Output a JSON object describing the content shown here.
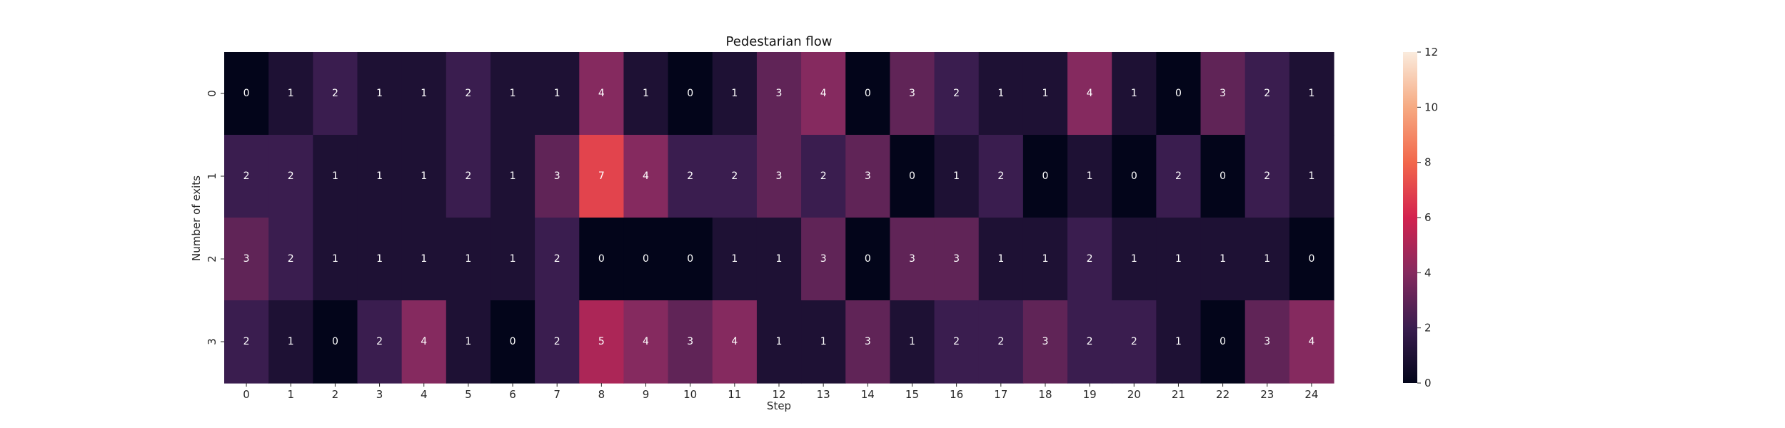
{
  "chart_data": {
    "type": "heatmap",
    "title": "Pedestarian flow",
    "xlabel": "Step",
    "ylabel": "Number of exits",
    "x_categories": [
      "0",
      "1",
      "2",
      "3",
      "4",
      "5",
      "6",
      "7",
      "8",
      "9",
      "10",
      "11",
      "12",
      "13",
      "14",
      "15",
      "16",
      "17",
      "18",
      "19",
      "20",
      "21",
      "22",
      "23",
      "24"
    ],
    "y_categories": [
      "0",
      "1",
      "2",
      "3"
    ],
    "values": [
      [
        0,
        1,
        2,
        1,
        1,
        2,
        1,
        1,
        4,
        1,
        0,
        1,
        3,
        4,
        0,
        3,
        2,
        1,
        1,
        4,
        1,
        0,
        3,
        2,
        1
      ],
      [
        2,
        2,
        1,
        1,
        1,
        2,
        1,
        3,
        7,
        4,
        2,
        2,
        3,
        2,
        3,
        0,
        1,
        2,
        0,
        1,
        0,
        2,
        0,
        2,
        1
      ],
      [
        3,
        2,
        1,
        1,
        1,
        1,
        1,
        2,
        0,
        0,
        0,
        1,
        1,
        3,
        0,
        3,
        3,
        1,
        1,
        2,
        1,
        1,
        1,
        1,
        0
      ],
      [
        2,
        1,
        0,
        2,
        4,
        1,
        0,
        2,
        5,
        4,
        3,
        4,
        1,
        1,
        3,
        1,
        2,
        2,
        3,
        2,
        2,
        1,
        0,
        3,
        4
      ]
    ],
    "colorbar": {
      "min": 0,
      "max": 12,
      "ticks": [
        "0",
        "2",
        "4",
        "6",
        "8",
        "10",
        "12"
      ]
    },
    "colormap": "rocket",
    "annotations": true,
    "grid": false,
    "legend": "colorbar-right"
  }
}
